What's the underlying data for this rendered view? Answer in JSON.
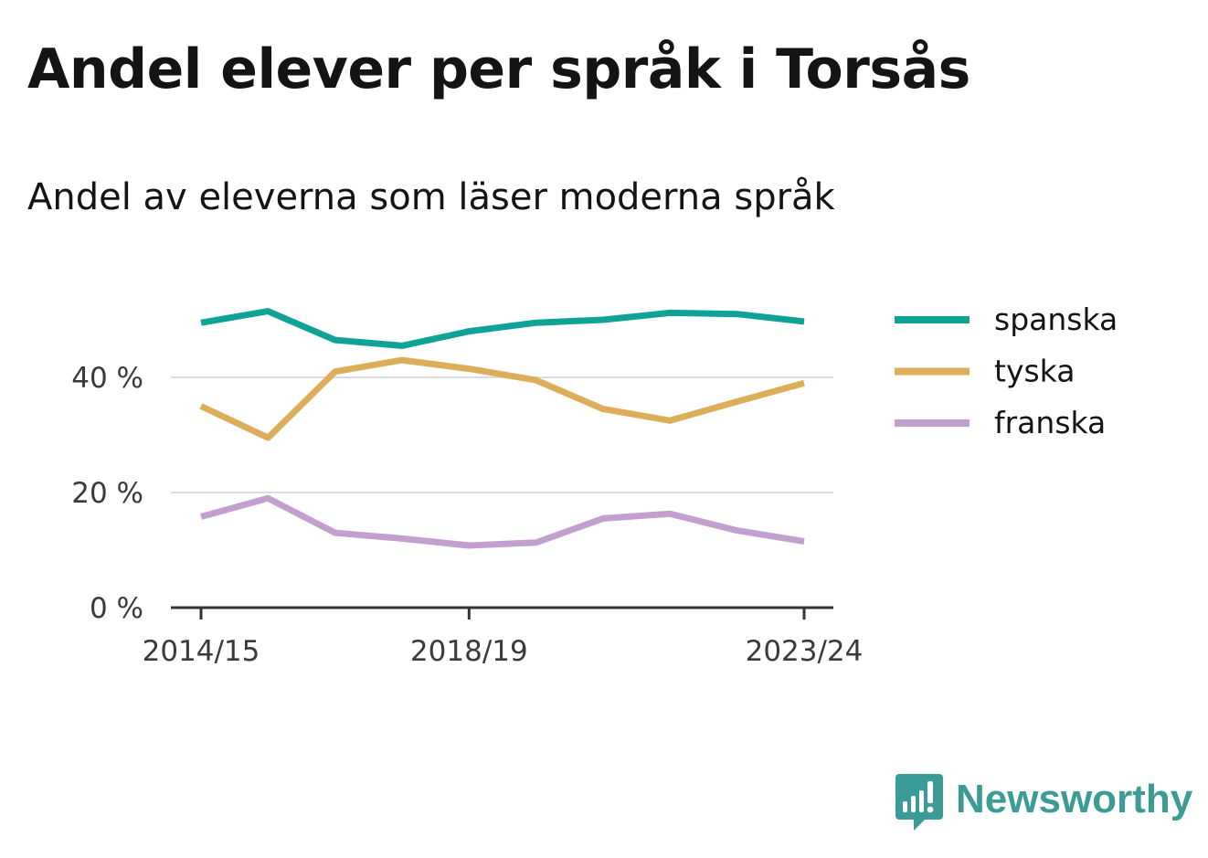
{
  "title": "Andel elever per språk i Torsås",
  "subtitle": "Andel av eleverna som läser moderna språk",
  "brand": {
    "name": "Newsworthy",
    "logo_icon": "newsworthy-bar-chart-bubble-icon",
    "color": "#3a9b97"
  },
  "chart_data": {
    "type": "line",
    "x": [
      "2014/15",
      "2015/16",
      "2016/17",
      "2017/18",
      "2018/19",
      "2019/20",
      "2020/21",
      "2021/22",
      "2022/23",
      "2023/24"
    ],
    "x_tick_labels": [
      "2014/15",
      "2018/19",
      "2023/24"
    ],
    "y_ticks": [
      {
        "value": 0,
        "label": "0 %"
      },
      {
        "value": 20,
        "label": "20 %"
      },
      {
        "value": 40,
        "label": "40 %"
      }
    ],
    "ylim": [
      0,
      56
    ],
    "grid": "horizontal",
    "legend_position": "right",
    "series": [
      {
        "name": "spanska",
        "color": "#0fa398",
        "values": [
          49.5,
          51.5,
          46.5,
          45.5,
          48,
          49.5,
          50,
          51.2,
          51,
          49.7
        ]
      },
      {
        "name": "tyska",
        "color": "#dcae5a",
        "values": [
          35,
          29.5,
          41,
          43,
          41.5,
          39.5,
          34.5,
          32.5,
          35.8,
          39
        ]
      },
      {
        "name": "franska",
        "color": "#c39fd0",
        "values": [
          15.8,
          19,
          13,
          12,
          10.8,
          11.3,
          15.5,
          16.3,
          13.4,
          11.5
        ]
      }
    ]
  }
}
